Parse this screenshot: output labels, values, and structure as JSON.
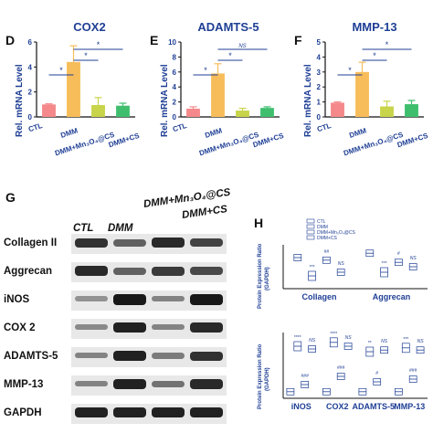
{
  "panels": {
    "D": {
      "letter": "D",
      "title": "COX2"
    },
    "E": {
      "letter": "E",
      "title": "ADAMTS-5"
    },
    "F": {
      "letter": "F",
      "title": "MMP-13"
    },
    "G": {
      "letter": "G"
    },
    "H": {
      "letter": "H"
    }
  },
  "ylabel_rel": "Rel. mRNA Level",
  "ylabel_protein": "Protein Expression Ratio",
  "ylabel_protein_sub": "(GAPDH)",
  "groups": [
    "CTL",
    "DMM",
    "DMM+Mn₃O₄@CS",
    "DMM+CS"
  ],
  "colors": {
    "CTL": "#f4888a",
    "DMM": "#f7bd5a",
    "MnCS": "#c8d449",
    "CS": "#3fbf6e",
    "title": "#1f3f95"
  },
  "significance": {
    "star": "*",
    "ns": "NS"
  },
  "western": {
    "headers": [
      "CTL",
      "DMM",
      "DMM+Mn₃O₄@CS",
      "DMM+CS"
    ],
    "rows": [
      "Collagen II",
      "Aggrecan",
      "iNOS",
      "COX 2",
      "ADAMTS-5",
      "MMP-13",
      "GAPDH"
    ],
    "intensity": [
      [
        0.8,
        0.5,
        0.85,
        0.7
      ],
      [
        0.85,
        0.5,
        0.75,
        0.65
      ],
      [
        0.2,
        0.95,
        0.3,
        0.95
      ],
      [
        0.25,
        0.9,
        0.3,
        0.85
      ],
      [
        0.3,
        0.9,
        0.35,
        0.8
      ],
      [
        0.3,
        0.9,
        0.4,
        0.85
      ],
      [
        0.9,
        0.9,
        0.9,
        0.9
      ]
    ]
  },
  "chart_data": [
    {
      "type": "bar",
      "title": "COX2",
      "ylabel": "Rel. mRNA Level",
      "ylim": [
        0,
        6
      ],
      "yticks": [
        0,
        2,
        4,
        6
      ],
      "categories": [
        "CTL",
        "DMM",
        "DMM+Mn₃O₄@CS",
        "DMM+CS"
      ],
      "values": [
        1.0,
        4.4,
        0.95,
        0.9
      ],
      "errors": [
        0.05,
        1.3,
        0.6,
        0.2
      ],
      "annotations": [
        "*",
        "*",
        "*"
      ]
    },
    {
      "type": "bar",
      "title": "ADAMTS-5",
      "ylabel": "Rel. mRNA Level",
      "ylim": [
        0,
        10
      ],
      "yticks": [
        0,
        2,
        4,
        6,
        8,
        10
      ],
      "categories": [
        "CTL",
        "DMM",
        "DMM+Mn₃O₄@CS",
        "DMM+CS"
      ],
      "values": [
        1.1,
        5.8,
        0.85,
        1.2
      ],
      "errors": [
        0.25,
        1.3,
        0.3,
        0.15
      ],
      "annotations": [
        "*",
        "*",
        "NS"
      ]
    },
    {
      "type": "bar",
      "title": "MMP-13",
      "ylabel": "Rel. mRNA Level",
      "ylim": [
        0,
        5
      ],
      "yticks": [
        0,
        1,
        2,
        3,
        4,
        5
      ],
      "categories": [
        "CTL",
        "DMM",
        "DMM+Mn₃O₄@CS",
        "DMM+CS"
      ],
      "values": [
        0.95,
        3.0,
        0.7,
        0.85
      ],
      "errors": [
        0.05,
        0.65,
        0.35,
        0.25
      ],
      "annotations": [
        "*",
        "*",
        "*"
      ]
    },
    {
      "type": "box",
      "ylabel": "Protein Expression Ratio (GAPDH)",
      "ylim": [
        0,
        1.2
      ],
      "legend": [
        "CTL",
        "DMM",
        "DMM+Mn₃O₄@CS",
        "DMM+CS"
      ],
      "categories": [
        "Collagen",
        "Aggrecan"
      ],
      "series": [
        {
          "name": "CTL",
          "values": [
            0.85,
            0.97
          ]
        },
        {
          "name": "DMM",
          "values": [
            0.35,
            0.45
          ]
        },
        {
          "name": "DMM+Mn₃O₄@CS",
          "values": [
            0.78,
            0.72
          ]
        },
        {
          "name": "DMM+CS",
          "values": [
            0.45,
            0.6
          ]
        }
      ],
      "annotations": {
        "Collagen": [
          "***",
          "##",
          "NS"
        ],
        "Aggrecan": [
          "***",
          "#",
          "NS"
        ]
      }
    },
    {
      "type": "box",
      "ylabel": "Protein Expression Ratio (GAPDH)",
      "ylim": [
        0,
        1.2
      ],
      "categories": [
        "iNOS",
        "COX2",
        "ADAMTS-5",
        "MMP-13"
      ],
      "series": [
        {
          "name": "CTL",
          "values": [
            0.12,
            0.12,
            0.12,
            0.12
          ]
        },
        {
          "name": "DMM",
          "values": [
            0.95,
            1.02,
            0.85,
            0.92
          ]
        },
        {
          "name": "DMM+Mn₃O₄@CS",
          "values": [
            0.25,
            0.4,
            0.3,
            0.35
          ]
        },
        {
          "name": "DMM+CS",
          "values": [
            0.9,
            0.95,
            0.88,
            0.88
          ]
        }
      ],
      "annotations": {
        "iNOS": [
          "****",
          "###",
          "NS"
        ],
        "COX2": [
          "****",
          "###",
          "NS"
        ],
        "ADAMTS-5": [
          "**",
          "#",
          "NS"
        ],
        "MMP-13": [
          "***",
          "###",
          "NS"
        ]
      }
    }
  ]
}
